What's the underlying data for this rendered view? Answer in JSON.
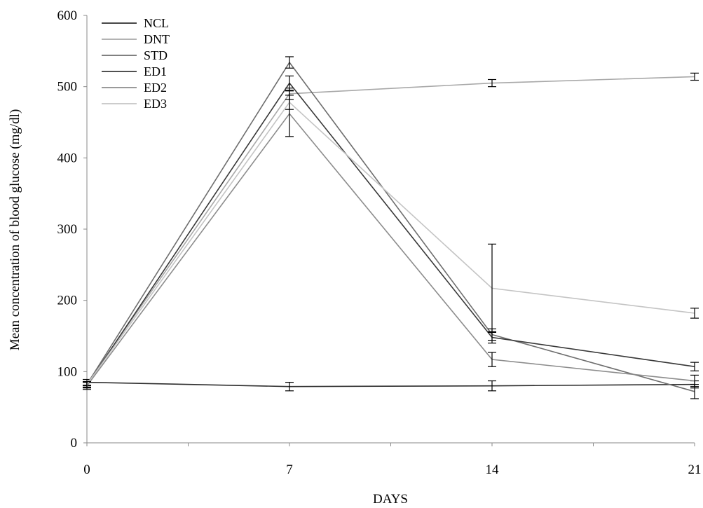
{
  "chart_data": {
    "type": "line",
    "xlabel": "DAYS",
    "ylabel": "Mean concentration of blood glucose (mg/dl)",
    "xlim": [
      0,
      21
    ],
    "ylim": [
      0,
      600
    ],
    "x_ticks": [
      0,
      7,
      14,
      21
    ],
    "y_ticks": [
      0,
      100,
      200,
      300,
      400,
      500,
      600
    ],
    "grid": false,
    "legend_position": "top-left",
    "x": [
      0,
      7,
      14,
      21
    ],
    "series": [
      {
        "name": "NCL",
        "color": "#2e2e2e",
        "values": [
          85,
          79,
          80,
          82
        ],
        "errors": [
          4,
          6,
          7,
          5
        ]
      },
      {
        "name": "DNT",
        "color": "#a8a8a8",
        "values": [
          83,
          490,
          505,
          514
        ],
        "errors": [
          3,
          8,
          5,
          5
        ]
      },
      {
        "name": "STD",
        "color": "#6e6e6e",
        "values": [
          82,
          534,
          152,
          72
        ],
        "errors": [
          4,
          8,
          8,
          10
        ]
      },
      {
        "name": "ED1",
        "color": "#383838",
        "values": [
          81,
          505,
          148,
          107
        ],
        "errors": [
          4,
          10,
          8,
          6
        ]
      },
      {
        "name": "ED2",
        "color": "#8c8c8c",
        "values": [
          80,
          462,
          117,
          87
        ],
        "errors": [
          5,
          32,
          10,
          8
        ]
      },
      {
        "name": "ED3",
        "color": "#c4c4c4",
        "values": [
          82,
          478,
          217,
          182
        ],
        "errors": [
          4,
          10,
          62,
          7
        ]
      }
    ]
  }
}
